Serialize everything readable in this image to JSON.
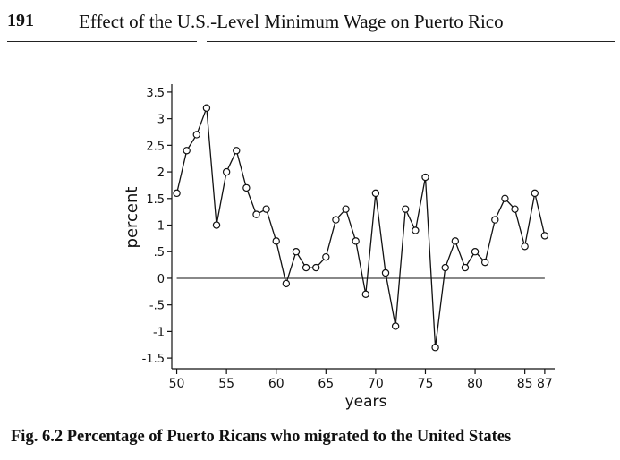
{
  "header": {
    "page_number": "191",
    "running_title": "Effect of the U.S.-Level Minimum Wage on Puerto Rico"
  },
  "caption": "Fig. 6.2   Percentage of Puerto Ricans who migrated to the United States",
  "chart_data": {
    "type": "line",
    "title": "",
    "xlabel": "years",
    "ylabel": "percent",
    "xlim": [
      49.5,
      88
    ],
    "ylim": [
      -1.7,
      3.65
    ],
    "x_ticks": [
      50,
      55,
      60,
      65,
      70,
      75,
      80,
      85,
      87
    ],
    "x_tick_labels": [
      "50",
      "55",
      "60",
      "65",
      "70",
      "75",
      "80",
      "85",
      "87"
    ],
    "y_ticks": [
      3.5,
      3,
      2.5,
      2,
      1.5,
      1,
      0.5,
      0,
      -0.5,
      -1,
      -1.5
    ],
    "y_tick_labels": [
      "3.5",
      "3",
      "2.5",
      "2",
      "1.5",
      "1",
      ".5",
      "0",
      "-.5",
      "-1",
      "-1.5"
    ],
    "reference_line_y": 0,
    "grid": false,
    "marker": "circle",
    "series": [
      {
        "x": [
          50,
          51,
          52,
          53,
          54,
          55,
          56,
          57,
          58,
          59,
          60,
          61,
          62,
          63,
          64,
          65,
          66,
          67,
          68,
          69,
          70,
          71,
          72,
          73,
          74,
          75,
          76,
          77,
          78,
          79,
          80,
          81,
          82,
          83,
          84,
          85,
          86,
          87
        ],
        "values": [
          1.6,
          2.4,
          2.7,
          3.2,
          1.0,
          2.0,
          2.4,
          1.7,
          1.2,
          1.3,
          0.7,
          -0.1,
          0.5,
          0.2,
          0.2,
          0.4,
          1.1,
          1.3,
          0.7,
          -0.3,
          1.6,
          0.1,
          -0.9,
          1.3,
          0.9,
          1.9,
          -1.3,
          0.2,
          0.7,
          0.2,
          0.5,
          0.3,
          1.1,
          1.5,
          1.3,
          0.6,
          1.6,
          0.8
        ]
      }
    ]
  }
}
